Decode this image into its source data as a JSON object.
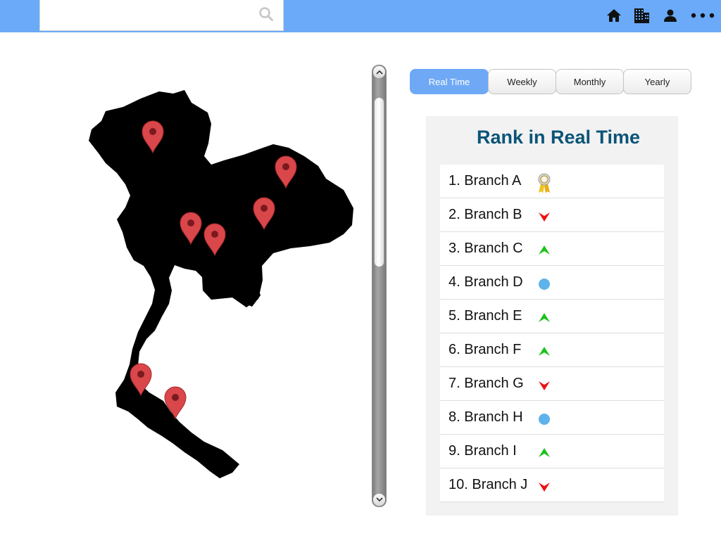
{
  "search": {
    "placeholder": "",
    "value": ""
  },
  "header_icons": [
    "home-icon",
    "buildings-icon",
    "user-icon",
    "more-icon"
  ],
  "tabs": [
    {
      "label": "Real Time",
      "active": true
    },
    {
      "label": "Weekly",
      "active": false
    },
    {
      "label": "Monthly",
      "active": false
    },
    {
      "label": "Yearly",
      "active": false
    }
  ],
  "rank_panel": {
    "title": "Rank in Real Time",
    "items": [
      {
        "label": "1. Branch A",
        "trend": "award"
      },
      {
        "label": "2. Branch B",
        "trend": "down"
      },
      {
        "label": "3. Branch C",
        "trend": "up"
      },
      {
        "label": "4. Branch D",
        "trend": "same"
      },
      {
        "label": "5. Branch E",
        "trend": "up"
      },
      {
        "label": "6. Branch F",
        "trend": "up"
      },
      {
        "label": "7. Branch G",
        "trend": "down"
      },
      {
        "label": "8. Branch H",
        "trend": "same"
      },
      {
        "label": "9. Branch I",
        "trend": "up"
      },
      {
        "label": "10. Branch J",
        "trend": "down"
      }
    ]
  },
  "map": {
    "pin_count": 7
  },
  "colors": {
    "header": "#6aaaf8",
    "active_tab": "#6fa9f5",
    "title": "#0b5478",
    "up": "#19c319",
    "down": "#ee1111",
    "same": "#5fb3ea",
    "pin": "#d9474a"
  }
}
